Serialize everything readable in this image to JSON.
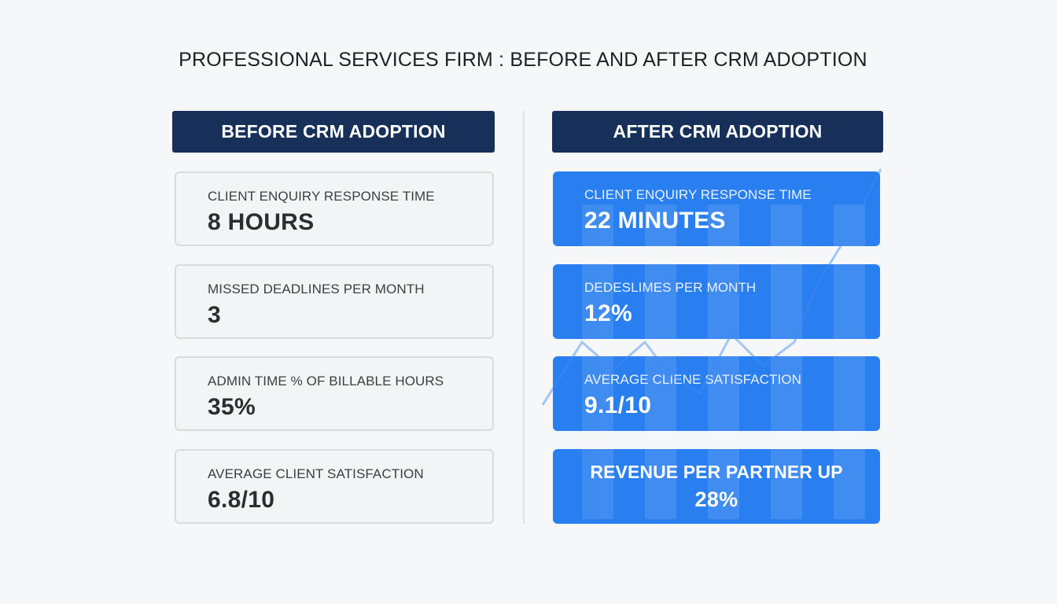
{
  "title": "PROFESSIONAL SERVICES FIRM : BEFORE AND AFTER CRM ADOPTION",
  "before": {
    "header": "BEFORE CRM ADOPTION",
    "cards": [
      {
        "label": "CLIENT ENQUIRY RESPONSE TIME",
        "value": "8 HOURS"
      },
      {
        "label": "MISSED DEADLINES PER MONTH",
        "value": "3"
      },
      {
        "label": "ADMIN TIME % OF BILLABLE HOURS",
        "value": "35%"
      },
      {
        "label": "AVERAGE CLIENT SATISFACTION",
        "value": "6.8/10"
      }
    ]
  },
  "after": {
    "header": "AFTER CRM ADOPTION",
    "cards": [
      {
        "label": "CLIENT ENQUIRY RESPONSE TIME",
        "value": "22 MINUTES"
      },
      {
        "label": "DEDESLIMES PER MONTH",
        "value": "12%"
      },
      {
        "label": "AVERAGE CLIENE SATISFACTION",
        "value": "9.1/10"
      },
      {
        "label": "REVENUE PER PARTNER UP",
        "value": "28%"
      }
    ]
  },
  "colors": {
    "header_bg": "#16305a",
    "after_card_bg": "#2a7ff0",
    "before_card_bg": "#f3f4f5",
    "trend_line": "#3d8af5"
  },
  "decoration": {
    "background_chart": "trend-line-bars"
  }
}
